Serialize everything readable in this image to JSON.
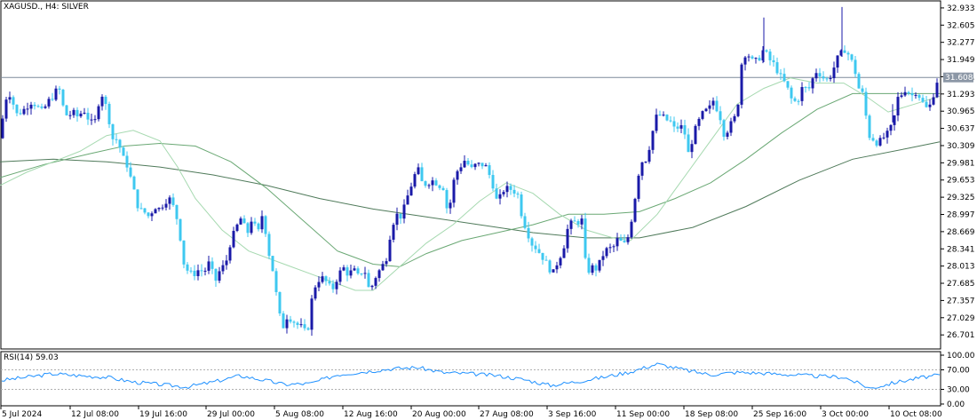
{
  "chart_data": {
    "type": "candlestick",
    "title": "XAGUSD., H4:  SILVER",
    "price_axis": {
      "range": [
        26.45,
        33.05
      ],
      "ticks": [
        "32.933",
        "32.605",
        "32.277",
        "31.949",
        "31.621",
        "31.293",
        "30.965",
        "30.637",
        "30.309",
        "29.981",
        "29.653",
        "29.325",
        "28.997",
        "28.669",
        "28.341",
        "28.013",
        "27.685",
        "27.357",
        "27.029",
        "26.701"
      ]
    },
    "current_price": "31.608",
    "time_axis": {
      "labels": [
        "5 Jul 2024",
        "12 Jul 08:00",
        "19 Jul 16:00",
        "29 Jul 00:00",
        "5 Aug 08:00",
        "12 Aug 16:00",
        "20 Aug 00:00",
        "27 Aug 08:00",
        "3 Sep 16:00",
        "11 Sep 00:00",
        "18 Sep 08:00",
        "25 Sep 16:00",
        "3 Oct 00:00",
        "10 Oct 08:00"
      ]
    },
    "price_path": [
      [
        0,
        30.45
      ],
      [
        6,
        31.2
      ],
      [
        12,
        31.3
      ],
      [
        18,
        30.9
      ],
      [
        24,
        30.95
      ],
      [
        30,
        31.05
      ],
      [
        36,
        31.15
      ],
      [
        42,
        31.05
      ],
      [
        48,
        30.95
      ],
      [
        54,
        31.15
      ],
      [
        60,
        31.25
      ],
      [
        66,
        31.45
      ],
      [
        70,
        31.1
      ],
      [
        76,
        30.85
      ],
      [
        82,
        30.95
      ],
      [
        88,
        30.85
      ],
      [
        94,
        31.0
      ],
      [
        100,
        30.8
      ],
      [
        106,
        30.7
      ],
      [
        112,
        31.2
      ],
      [
        116,
        31.3
      ],
      [
        120,
        31.0
      ],
      [
        124,
        30.7
      ],
      [
        128,
        30.35
      ],
      [
        132,
        30.45
      ],
      [
        138,
        30.1
      ],
      [
        144,
        29.9
      ],
      [
        150,
        29.5
      ],
      [
        156,
        29.1
      ],
      [
        162,
        29.05
      ],
      [
        168,
        28.95
      ],
      [
        174,
        29.15
      ],
      [
        180,
        29.1
      ],
      [
        186,
        29.25
      ],
      [
        192,
        29.3
      ],
      [
        198,
        29.0
      ],
      [
        202,
        28.7
      ],
      [
        206,
        28.1
      ],
      [
        212,
        27.9
      ],
      [
        218,
        27.85
      ],
      [
        224,
        27.95
      ],
      [
        230,
        27.9
      ],
      [
        236,
        28.1
      ],
      [
        242,
        27.7
      ],
      [
        248,
        27.95
      ],
      [
        254,
        28.05
      ],
      [
        260,
        28.5
      ],
      [
        266,
        28.75
      ],
      [
        272,
        28.95
      ],
      [
        278,
        28.6
      ],
      [
        284,
        28.95
      ],
      [
        290,
        28.6
      ],
      [
        296,
        29.05
      ],
      [
        302,
        28.3
      ],
      [
        306,
        28.05
      ],
      [
        310,
        27.6
      ],
      [
        314,
        27.15
      ],
      [
        318,
        26.8
      ],
      [
        322,
        27.05
      ],
      [
        328,
        27.0
      ],
      [
        334,
        26.9
      ],
      [
        340,
        26.85
      ],
      [
        346,
        26.7
      ],
      [
        350,
        27.3
      ],
      [
        356,
        27.7
      ],
      [
        362,
        27.8
      ],
      [
        368,
        27.7
      ],
      [
        374,
        27.55
      ],
      [
        380,
        27.8
      ],
      [
        386,
        28.0
      ],
      [
        392,
        27.85
      ],
      [
        398,
        27.95
      ],
      [
        404,
        27.8
      ],
      [
        410,
        28.0
      ],
      [
        414,
        27.6
      ],
      [
        418,
        27.6
      ],
      [
        424,
        27.85
      ],
      [
        430,
        28.0
      ],
      [
        436,
        28.2
      ],
      [
        440,
        28.7
      ],
      [
        446,
        29.0
      ],
      [
        452,
        28.95
      ],
      [
        458,
        29.3
      ],
      [
        464,
        29.6
      ],
      [
        470,
        29.9
      ],
      [
        476,
        29.55
      ],
      [
        482,
        29.6
      ],
      [
        488,
        29.65
      ],
      [
        494,
        29.55
      ],
      [
        500,
        29.5
      ],
      [
        504,
        29.0
      ],
      [
        508,
        29.3
      ],
      [
        512,
        29.75
      ],
      [
        518,
        29.9
      ],
      [
        524,
        30.05
      ],
      [
        530,
        29.85
      ],
      [
        536,
        29.95
      ],
      [
        542,
        29.95
      ],
      [
        548,
        29.9
      ],
      [
        552,
        29.7
      ],
      [
        556,
        29.5
      ],
      [
        560,
        29.2
      ],
      [
        566,
        29.45
      ],
      [
        572,
        29.5
      ],
      [
        578,
        29.45
      ],
      [
        584,
        29.35
      ],
      [
        588,
        28.9
      ],
      [
        592,
        28.75
      ],
      [
        598,
        28.45
      ],
      [
        604,
        28.35
      ],
      [
        610,
        28.2
      ],
      [
        616,
        28.05
      ],
      [
        622,
        27.85
      ],
      [
        628,
        28.1
      ],
      [
        632,
        28.25
      ],
      [
        636,
        28.45
      ],
      [
        640,
        28.8
      ],
      [
        646,
        28.85
      ],
      [
        652,
        28.85
      ],
      [
        656,
        28.9
      ],
      [
        660,
        27.85
      ],
      [
        666,
        28.0
      ],
      [
        672,
        27.95
      ],
      [
        678,
        28.2
      ],
      [
        684,
        28.35
      ],
      [
        690,
        28.35
      ],
      [
        696,
        28.55
      ],
      [
        702,
        28.4
      ],
      [
        708,
        28.6
      ],
      [
        714,
        29.2
      ],
      [
        718,
        29.7
      ],
      [
        722,
        30.0
      ],
      [
        728,
        30.05
      ],
      [
        734,
        30.5
      ],
      [
        738,
        30.85
      ],
      [
        744,
        30.9
      ],
      [
        750,
        30.8
      ],
      [
        756,
        30.75
      ],
      [
        760,
        30.6
      ],
      [
        766,
        30.7
      ],
      [
        772,
        30.5
      ],
      [
        776,
        30.05
      ],
      [
        780,
        30.5
      ],
      [
        786,
        30.75
      ],
      [
        792,
        30.95
      ],
      [
        798,
        31.0
      ],
      [
        804,
        31.2
      ],
      [
        808,
        30.95
      ],
      [
        812,
        30.8
      ],
      [
        816,
        30.45
      ],
      [
        820,
        30.65
      ],
      [
        826,
        30.8
      ],
      [
        830,
        30.95
      ],
      [
        836,
        32.05
      ],
      [
        842,
        32.05
      ],
      [
        848,
        31.9
      ],
      [
        854,
        31.95
      ],
      [
        860,
        32.15
      ],
      [
        866,
        31.95
      ],
      [
        872,
        31.85
      ],
      [
        876,
        31.7
      ],
      [
        882,
        31.55
      ],
      [
        888,
        31.35
      ],
      [
        892,
        31.15
      ],
      [
        898,
        31.15
      ],
      [
        904,
        31.45
      ],
      [
        910,
        31.35
      ],
      [
        914,
        31.55
      ],
      [
        920,
        31.75
      ],
      [
        924,
        31.65
      ],
      [
        930,
        31.55
      ],
      [
        936,
        31.65
      ],
      [
        942,
        31.95
      ],
      [
        946,
        32.05
      ],
      [
        952,
        32.15
      ],
      [
        958,
        31.95
      ],
      [
        962,
        31.8
      ],
      [
        966,
        31.4
      ],
      [
        970,
        31.4
      ],
      [
        974,
        31.0
      ],
      [
        978,
        30.5
      ],
      [
        982,
        30.45
      ],
      [
        988,
        30.35
      ],
      [
        994,
        30.45
      ],
      [
        1000,
        30.55
      ],
      [
        1006,
        30.75
      ],
      [
        1010,
        31.2
      ],
      [
        1016,
        31.3
      ],
      [
        1020,
        31.4
      ],
      [
        1026,
        31.25
      ],
      [
        1032,
        31.35
      ],
      [
        1038,
        31.15
      ],
      [
        1044,
        31.0
      ],
      [
        1048,
        31.1
      ],
      [
        1052,
        31.35
      ],
      [
        1056,
        31.6
      ]
    ],
    "ma_fast_path": [
      [
        0,
        29.55
      ],
      [
        30,
        29.8
      ],
      [
        60,
        30.0
      ],
      [
        90,
        30.2
      ],
      [
        120,
        30.5
      ],
      [
        150,
        30.6
      ],
      [
        180,
        30.4
      ],
      [
        200,
        29.9
      ],
      [
        220,
        29.3
      ],
      [
        250,
        28.7
      ],
      [
        280,
        28.3
      ],
      [
        320,
        28.05
      ],
      [
        360,
        27.8
      ],
      [
        400,
        27.55
      ],
      [
        420,
        27.55
      ],
      [
        450,
        28.0
      ],
      [
        480,
        28.45
      ],
      [
        510,
        28.8
      ],
      [
        540,
        29.25
      ],
      [
        570,
        29.6
      ],
      [
        600,
        29.4
      ],
      [
        630,
        29.0
      ],
      [
        660,
        28.7
      ],
      [
        690,
        28.55
      ],
      [
        710,
        28.5
      ],
      [
        740,
        29.0
      ],
      [
        770,
        29.7
      ],
      [
        800,
        30.4
      ],
      [
        830,
        31.1
      ],
      [
        860,
        31.4
      ],
      [
        890,
        31.6
      ],
      [
        920,
        31.5
      ],
      [
        950,
        31.5
      ],
      [
        975,
        31.25
      ],
      [
        1000,
        30.95
      ],
      [
        1030,
        31.1
      ],
      [
        1058,
        31.25
      ]
    ],
    "ma_mid_path": [
      [
        0,
        29.7
      ],
      [
        50,
        29.95
      ],
      [
        100,
        30.15
      ],
      [
        140,
        30.3
      ],
      [
        180,
        30.35
      ],
      [
        220,
        30.3
      ],
      [
        260,
        30.0
      ],
      [
        300,
        29.5
      ],
      [
        340,
        28.9
      ],
      [
        380,
        28.3
      ],
      [
        420,
        28.05
      ],
      [
        450,
        28.0
      ],
      [
        480,
        28.25
      ],
      [
        520,
        28.5
      ],
      [
        560,
        28.65
      ],
      [
        600,
        28.8
      ],
      [
        640,
        29.0
      ],
      [
        680,
        29.0
      ],
      [
        720,
        29.05
      ],
      [
        760,
        29.3
      ],
      [
        800,
        29.6
      ],
      [
        840,
        30.05
      ],
      [
        880,
        30.55
      ],
      [
        920,
        31.0
      ],
      [
        960,
        31.3
      ],
      [
        1000,
        31.3
      ],
      [
        1058,
        31.3
      ]
    ],
    "ma_slow_path": [
      [
        0,
        30.0
      ],
      [
        60,
        30.05
      ],
      [
        120,
        30.0
      ],
      [
        180,
        29.9
      ],
      [
        240,
        29.75
      ],
      [
        300,
        29.55
      ],
      [
        360,
        29.3
      ],
      [
        420,
        29.1
      ],
      [
        480,
        28.95
      ],
      [
        540,
        28.8
      ],
      [
        600,
        28.65
      ],
      [
        660,
        28.55
      ],
      [
        720,
        28.55
      ],
      [
        780,
        28.75
      ],
      [
        840,
        29.15
      ],
      [
        900,
        29.65
      ],
      [
        960,
        30.05
      ],
      [
        1020,
        30.25
      ],
      [
        1058,
        30.38
      ]
    ],
    "rsi": {
      "label": "RSI(14) 59.03",
      "levels": [
        "100.00",
        "70.00",
        "30.00",
        "0.00"
      ],
      "path": [
        [
          0,
          48
        ],
        [
          30,
          55
        ],
        [
          60,
          62
        ],
        [
          90,
          58
        ],
        [
          120,
          55
        ],
        [
          150,
          45
        ],
        [
          180,
          40
        ],
        [
          210,
          35
        ],
        [
          240,
          45
        ],
        [
          270,
          58
        ],
        [
          300,
          48
        ],
        [
          320,
          40
        ],
        [
          350,
          42
        ],
        [
          380,
          60
        ],
        [
          410,
          66
        ],
        [
          440,
          72
        ],
        [
          470,
          75
        ],
        [
          500,
          64
        ],
        [
          530,
          62
        ],
        [
          560,
          58
        ],
        [
          590,
          50
        ],
        [
          620,
          38
        ],
        [
          650,
          46
        ],
        [
          680,
          55
        ],
        [
          710,
          66
        ],
        [
          740,
          82
        ],
        [
          770,
          70
        ],
        [
          800,
          60
        ],
        [
          830,
          65
        ],
        [
          860,
          63
        ],
        [
          890,
          60
        ],
        [
          920,
          57
        ],
        [
          950,
          55
        ],
        [
          980,
          32
        ],
        [
          1010,
          45
        ],
        [
          1040,
          55
        ],
        [
          1058,
          59
        ]
      ]
    }
  }
}
